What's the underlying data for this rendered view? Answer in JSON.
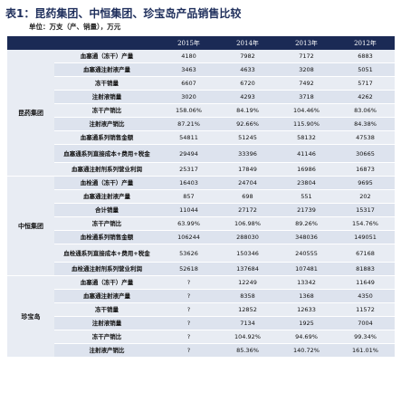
{
  "title": "表1：昆药集团、中恒集团、珍宝岛产品销售比较",
  "subtitle": "单位：万支（产、销量），万元",
  "table": {
    "header": [
      "2015年",
      "2014年",
      "2013年",
      "2012年"
    ],
    "groups": [
      {
        "name": "昆药集团",
        "rows": [
          {
            "label": "血塞通（冻干）产量",
            "values": [
              "4180",
              "7982",
              "7172",
              "6883"
            ]
          },
          {
            "label": "血塞通注射液产量",
            "values": [
              "3463",
              "4633",
              "3208",
              "5051"
            ]
          },
          {
            "label": "冻干销量",
            "values": [
              "6607",
              "6720",
              "7492",
              "5717"
            ]
          },
          {
            "label": "注射液销量",
            "values": [
              "3020",
              "4293",
              "3718",
              "4262"
            ]
          },
          {
            "label": "冻干产销比",
            "values": [
              "158.06%",
              "84.19%",
              "104.46%",
              "83.06%"
            ]
          },
          {
            "label": "注射液产销比",
            "values": [
              "87.21%",
              "92.66%",
              "115.90%",
              "84.38%"
            ]
          },
          {
            "label": "血塞通系列销售金额",
            "values": [
              "54811",
              "51245",
              "58132",
              "47538"
            ]
          },
          {
            "label": "血塞通系列直接成本+费用+税金",
            "values": [
              "29494",
              "33396",
              "41146",
              "30665"
            ]
          },
          {
            "label": "血塞通注射剂系列营业利润",
            "values": [
              "25317",
              "17849",
              "16986",
              "16873"
            ]
          }
        ]
      },
      {
        "name": "中恒集团",
        "rows": [
          {
            "label": "血栓通（冻干）产量",
            "values": [
              "16403",
              "24704",
              "23804",
              "9695"
            ]
          },
          {
            "label": "血塞通注射液产量",
            "values": [
              "857",
              "698",
              "551",
              "202"
            ]
          },
          {
            "label": "合计销量",
            "values": [
              "11044",
              "27172",
              "21739",
              "15317"
            ]
          },
          {
            "label": "冻干产销比",
            "values": [
              "63.99%",
              "106.98%",
              "89.26%",
              "154.76%"
            ]
          },
          {
            "label": "血栓通系列销售金额",
            "values": [
              "106244",
              "288030",
              "348036",
              "149051"
            ]
          },
          {
            "label": "血栓通系列直接成本+费用+税金",
            "values": [
              "53626",
              "150346",
              "240555",
              "67168"
            ]
          },
          {
            "label": "血栓通注射剂系列营业利润",
            "values": [
              "52618",
              "137684",
              "107481",
              "81883"
            ]
          }
        ]
      },
      {
        "name": "珍宝岛",
        "rows": [
          {
            "label": "血塞通（冻干）产量",
            "values": [
              "?",
              "12249",
              "13342",
              "11649"
            ]
          },
          {
            "label": "血塞通注射液产量",
            "values": [
              "?",
              "8358",
              "1368",
              "4350"
            ]
          },
          {
            "label": "冻干销量",
            "values": [
              "?",
              "12852",
              "12633",
              "11572"
            ]
          },
          {
            "label": "注射液销量",
            "values": [
              "?",
              "7134",
              "1925",
              "7004"
            ]
          },
          {
            "label": "冻干产销比",
            "values": [
              "?",
              "104.92%",
              "94.69%",
              "99.34%"
            ]
          },
          {
            "label": "注射液产销比",
            "values": [
              "?",
              "85.36%",
              "140.72%",
              "161.01%"
            ]
          }
        ]
      }
    ]
  }
}
